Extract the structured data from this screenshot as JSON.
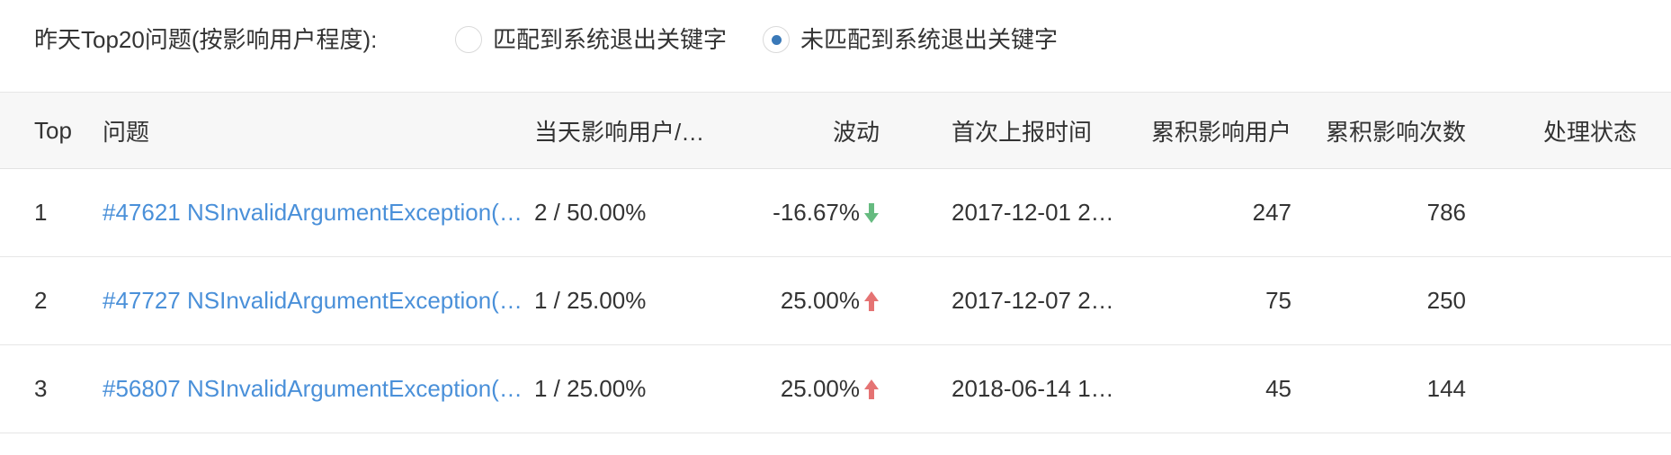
{
  "filter": {
    "label": "昨天Top20问题(按影响用户程度):",
    "options": [
      {
        "label": "匹配到系统退出关键字",
        "checked": false
      },
      {
        "label": "未匹配到系统退出关键字",
        "checked": true
      }
    ]
  },
  "table": {
    "headers": {
      "top": "Top",
      "issue": "问题",
      "today_users": "当天影响用户/…",
      "trend": "波动",
      "first_report": "首次上报时间",
      "cum_users": "累积影响用户",
      "cum_times": "累积影响次数",
      "status": "处理状态"
    },
    "rows": [
      {
        "top": "1",
        "issue": "#47621 NSInvalidArgumentException(…",
        "today_users": "2 / 50.00%",
        "trend": "-16.67%",
        "trend_dir": "down",
        "first_report": "2017-12-01 2…",
        "cum_users": "247",
        "cum_times": "786",
        "status": ""
      },
      {
        "top": "2",
        "issue": "#47727 NSInvalidArgumentException(…",
        "today_users": "1 / 25.00%",
        "trend": "25.00%",
        "trend_dir": "up",
        "first_report": "2017-12-07 2…",
        "cum_users": "75",
        "cum_times": "250",
        "status": ""
      },
      {
        "top": "3",
        "issue": "#56807 NSInvalidArgumentException(…",
        "today_users": "1 / 25.00%",
        "trend": "25.00%",
        "trend_dir": "up",
        "first_report": "2018-06-14 1…",
        "cum_users": "45",
        "cum_times": "144",
        "status": ""
      }
    ]
  },
  "colors": {
    "link": "#4a90d9",
    "up_arrow": "#e57373",
    "down_arrow": "#66bb80",
    "radio_checked": "#3a79b8",
    "header_bg": "#f7f7f7"
  },
  "icons": {
    "trend_up": "arrow-up-icon",
    "trend_down": "arrow-down-icon"
  }
}
